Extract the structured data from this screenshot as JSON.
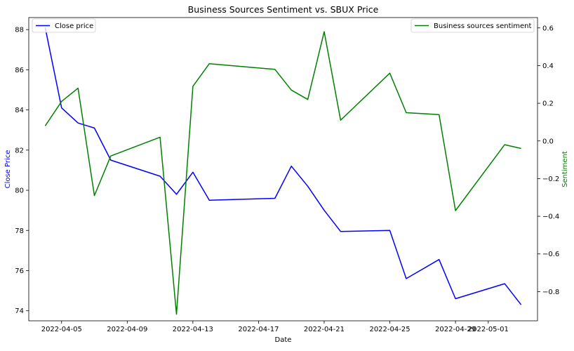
{
  "chart_data": {
    "type": "line",
    "title": "Business Sources Sentiment vs. SBUX Price",
    "xlabel": "Date",
    "ylabel_left": "Close Price",
    "ylabel_right": "Sentiment",
    "x_tick_labels": [
      "2022-04-05",
      "2022-04-09",
      "2022-04-13",
      "2022-04-17",
      "2022-04-21",
      "2022-04-25",
      "2022-04-29",
      "2022-05-01"
    ],
    "x_range": [
      "2022-04-03",
      "2022-05-04"
    ],
    "ylim_left": [
      73.5,
      88.6
    ],
    "yticks_left": [
      74,
      76,
      78,
      80,
      82,
      84,
      86,
      88
    ],
    "ylim_right": [
      -0.955,
      0.655
    ],
    "yticks_right": [
      -0.8,
      -0.6,
      -0.4,
      -0.2,
      0.0,
      0.2,
      0.4,
      0.6
    ],
    "grid": false,
    "series": [
      {
        "name": "Close price",
        "axis": "left",
        "color": "#0000ff",
        "legend_position": "top-left",
        "points": [
          {
            "date": "2022-04-04",
            "value": 88.1
          },
          {
            "date": "2022-04-05",
            "value": 84.1
          },
          {
            "date": "2022-04-06",
            "value": 83.35
          },
          {
            "date": "2022-04-07",
            "value": 83.1
          },
          {
            "date": "2022-04-08",
            "value": 81.5
          },
          {
            "date": "2022-04-11",
            "value": 80.7
          },
          {
            "date": "2022-04-12",
            "value": 79.8
          },
          {
            "date": "2022-04-13",
            "value": 80.9
          },
          {
            "date": "2022-04-14",
            "value": 79.5
          },
          {
            "date": "2022-04-18",
            "value": 79.6
          },
          {
            "date": "2022-04-19",
            "value": 81.2
          },
          {
            "date": "2022-04-20",
            "value": 80.2
          },
          {
            "date": "2022-04-21",
            "value": 79.0
          },
          {
            "date": "2022-04-22",
            "value": 77.95
          },
          {
            "date": "2022-04-25",
            "value": 78.0
          },
          {
            "date": "2022-04-26",
            "value": 75.6
          },
          {
            "date": "2022-04-28",
            "value": 76.55
          },
          {
            "date": "2022-04-29",
            "value": 74.6
          },
          {
            "date": "2022-05-02",
            "value": 75.35
          },
          {
            "date": "2022-05-03",
            "value": 74.3
          }
        ]
      },
      {
        "name": "Business sources sentiment",
        "axis": "right",
        "color": "#008000",
        "legend_position": "top-right",
        "points": [
          {
            "date": "2022-04-04",
            "value": 0.08
          },
          {
            "date": "2022-04-05",
            "value": 0.21
          },
          {
            "date": "2022-04-06",
            "value": 0.28
          },
          {
            "date": "2022-04-07",
            "value": -0.29
          },
          {
            "date": "2022-04-08",
            "value": -0.08
          },
          {
            "date": "2022-04-11",
            "value": 0.02
          },
          {
            "date": "2022-04-12",
            "value": -0.92
          },
          {
            "date": "2022-04-13",
            "value": 0.29
          },
          {
            "date": "2022-04-14",
            "value": 0.41
          },
          {
            "date": "2022-04-18",
            "value": 0.38
          },
          {
            "date": "2022-04-19",
            "value": 0.27
          },
          {
            "date": "2022-04-20",
            "value": 0.22
          },
          {
            "date": "2022-04-21",
            "value": 0.58
          },
          {
            "date": "2022-04-22",
            "value": 0.11
          },
          {
            "date": "2022-04-25",
            "value": 0.36
          },
          {
            "date": "2022-04-26",
            "value": 0.15
          },
          {
            "date": "2022-04-28",
            "value": 0.14
          },
          {
            "date": "2022-04-29",
            "value": -0.37
          },
          {
            "date": "2022-05-02",
            "value": -0.02
          },
          {
            "date": "2022-05-03",
            "value": -0.04
          }
        ]
      }
    ]
  }
}
